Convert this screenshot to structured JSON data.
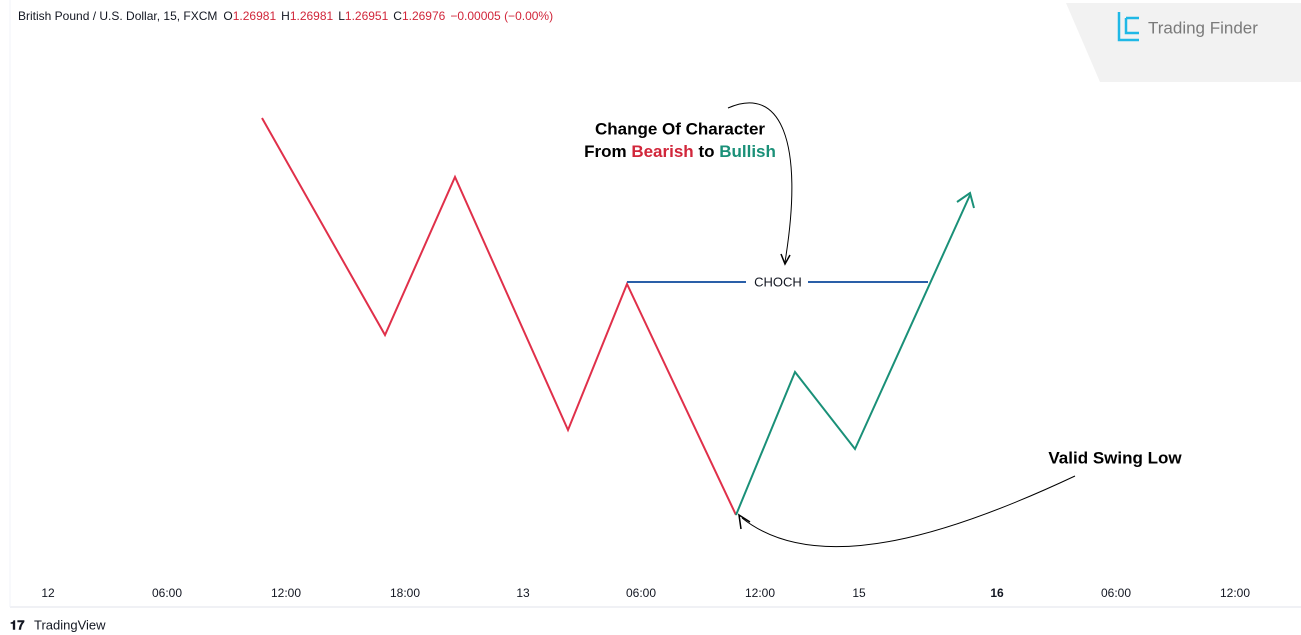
{
  "header": {
    "symbol": "British Pound / U.S. Dollar, 15, FXCM",
    "ohlc": [
      {
        "label": "O",
        "value": "1.26981"
      },
      {
        "label": "H",
        "value": "1.26981"
      },
      {
        "label": "L",
        "value": "1.26951"
      },
      {
        "label": "C",
        "value": "1.26976"
      }
    ],
    "change": "−0.00005 (−0.00%)"
  },
  "logo": "Trading Finder",
  "choch_label": "CHOCH",
  "annotations": {
    "choch": {
      "line1": "Change Of Character",
      "from": "From",
      "bearish": "Bearish",
      "to": "to",
      "bullish": "Bullish"
    },
    "swing_low": "Valid Swing Low"
  },
  "time_axis": [
    {
      "label": "12"
    },
    {
      "label": "06:00"
    },
    {
      "label": "12:00"
    },
    {
      "label": "18:00"
    },
    {
      "label": "13"
    },
    {
      "label": "06:00"
    },
    {
      "label": "12:00"
    },
    {
      "label": "15"
    },
    {
      "label": "16",
      "bold": true
    },
    {
      "label": "06:00"
    },
    {
      "label": "12:00"
    }
  ],
  "footer": "TradingView"
}
